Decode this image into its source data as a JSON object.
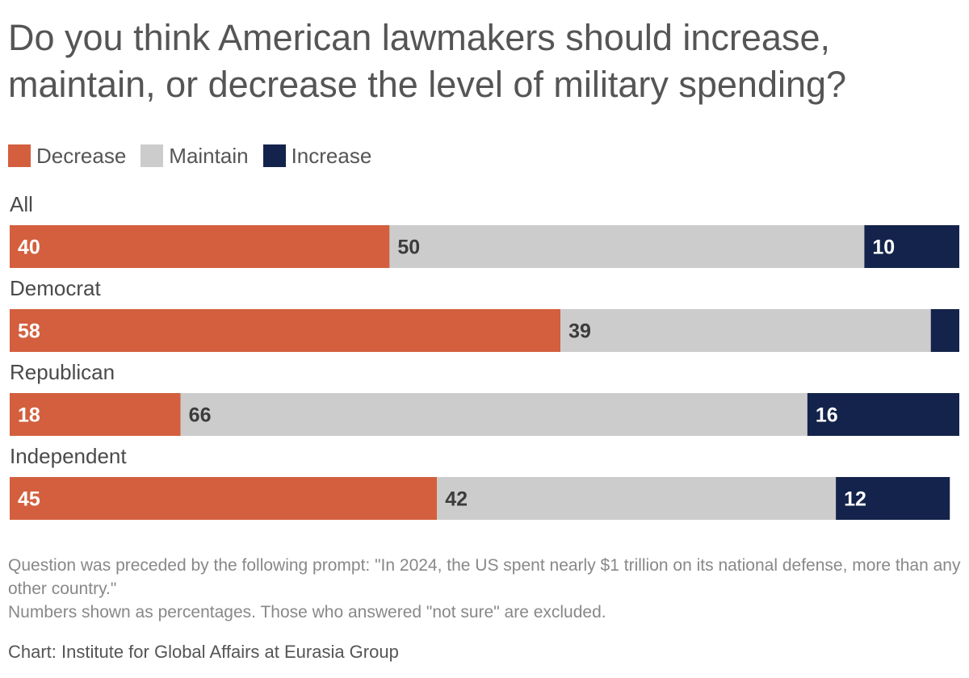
{
  "title_lines": [
    "Do you think American lawmakers should increase,",
    "maintain, or decrease the level of military spending?"
  ],
  "legend": [
    {
      "label": "Decrease",
      "color": "#d35f3e"
    },
    {
      "label": "Maintain",
      "color": "#cccccc"
    },
    {
      "label": "Increase",
      "color": "#14234b"
    }
  ],
  "chart_data": {
    "type": "bar",
    "orientation": "horizontal",
    "stacked": true,
    "title": "Do you think American lawmakers should increase, maintain, or decrease the level of military spending?",
    "categories": [
      "All",
      "Democrat",
      "Republican",
      "Independent"
    ],
    "series": [
      {
        "name": "Decrease",
        "color": "#d35f3e",
        "label_color": "#ffffff",
        "values": [
          40,
          58,
          18,
          45
        ],
        "labels": [
          "40",
          "58",
          "18",
          "45"
        ]
      },
      {
        "name": "Maintain",
        "color": "#cccccc",
        "label_color": "#3c3c3c",
        "values": [
          50,
          39,
          66,
          42
        ],
        "labels": [
          "50",
          "39",
          "66",
          "42"
        ]
      },
      {
        "name": "Increase",
        "color": "#14234b",
        "label_color": "#ffffff",
        "values": [
          10,
          3,
          16,
          12
        ],
        "labels": [
          "10",
          "",
          "16",
          "12"
        ]
      }
    ],
    "xlim": [
      0,
      100
    ],
    "unit": "percent"
  },
  "footer": {
    "note": "Question was preceded by the following prompt: \"In 2024, the US spent nearly $1 trillion on its national defense, more than any other country.\"",
    "note2": "Numbers shown as percentages. Those who answered \"not sure\" are excluded.",
    "source": "Chart: Institute for Global Affairs at Eurasia Group"
  }
}
